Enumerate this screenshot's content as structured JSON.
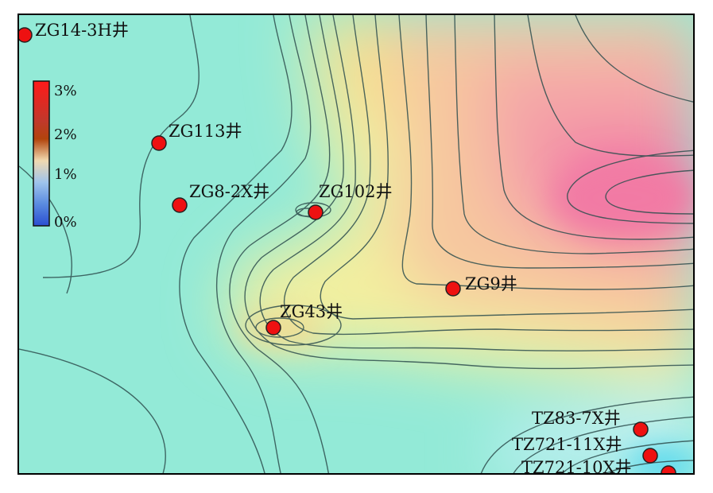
{
  "colors": {
    "background_low": "#8ee8d2",
    "mid_yellow": "#f4ef9a",
    "high_pink": "#f27fa6",
    "low_cyan": "#59d9ee",
    "contour": "#2f4f4f",
    "well_fill": "#ee1111",
    "well_stroke": "#222222"
  },
  "legend": {
    "ticks": [
      "3%",
      "2%",
      "1%",
      "0%"
    ],
    "stops": [
      {
        "value": "3%",
        "color": "#ff1a1a"
      },
      {
        "value": "2%",
        "color": "#b2440c"
      },
      {
        "value": "1.5%",
        "color": "#f0d9b0"
      },
      {
        "value": "1%",
        "color": "#9fc4ec"
      },
      {
        "value": "0%",
        "color": "#2b4fd1"
      }
    ]
  },
  "wells": [
    {
      "name": "ZG14-3H井"
    },
    {
      "name": "ZG113井"
    },
    {
      "name": "ZG8-2X井"
    },
    {
      "name": "ZG102井"
    },
    {
      "name": "ZG9井"
    },
    {
      "name": "ZG43井"
    },
    {
      "name": "TZ83-7X井"
    },
    {
      "name": "TZ721-11X井"
    },
    {
      "name": "TZ721-10X井"
    }
  ]
}
